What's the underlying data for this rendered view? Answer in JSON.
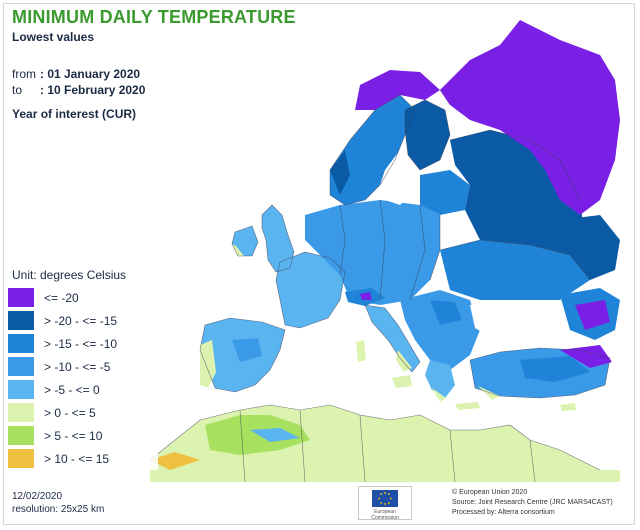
{
  "header": {
    "title": "MINIMUM DAILY TEMPERATURE",
    "subtitle": "Lowest values",
    "from_label": "from",
    "from_value": ": 01 January 2020",
    "to_label": "to",
    "to_value": ": 10 February 2020",
    "year_of_interest": "Year of interest (CUR)"
  },
  "legend": {
    "unit": "Unit: degrees Celsius",
    "items": [
      {
        "label": "<= -20",
        "color": "#7a1fe6"
      },
      {
        "label": "> -20 - <= -15",
        "color": "#0a5aa6"
      },
      {
        "label": "> -15 - <= -10",
        "color": "#1f84d8"
      },
      {
        "label": "> -10 - <= -5",
        "color": "#3a9ae8"
      },
      {
        "label": "> -5 - <= 0",
        "color": "#5ab4f0"
      },
      {
        "label": "> 0 - <= 5",
        "color": "#dcf3b0"
      },
      {
        "label": "> 5 - <= 10",
        "color": "#a8e060"
      },
      {
        "label": "> 10 - <= 15",
        "color": "#f0c040"
      }
    ]
  },
  "footer": {
    "date": "12/02/2020",
    "resolution": "resolution: 25x25 km"
  },
  "credits": {
    "line1": "© European Union 2020",
    "line2": "Source: Joint Research Centre (JRC MARS4CAST)",
    "line3": "Processed by: Alterra consortium"
  },
  "logo": {
    "text": "European Commission"
  },
  "colors": {
    "sea": "#ffffff",
    "border": "#3d3d55",
    "title_green": "#3a9a2e"
  }
}
